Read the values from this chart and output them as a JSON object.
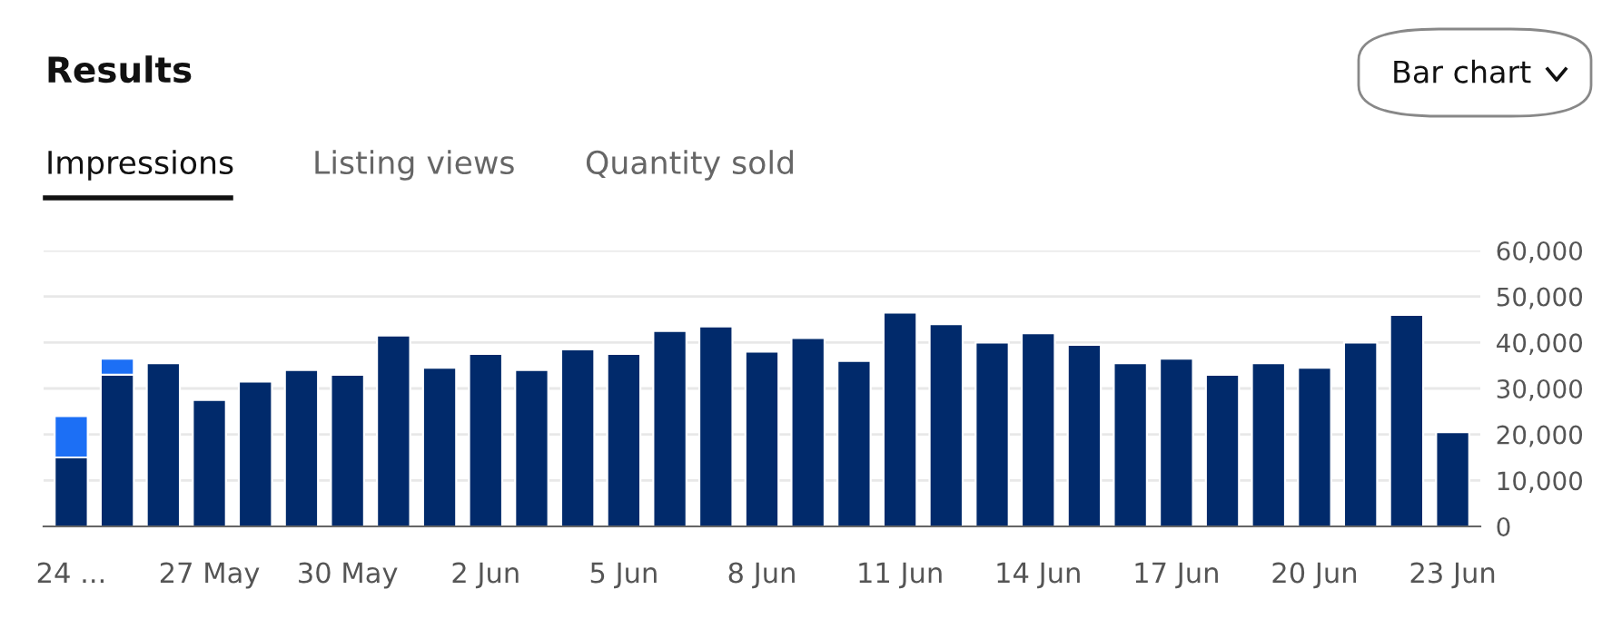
{
  "chart_data": {
    "type": "bar",
    "title": "Results",
    "annotations": [
      "Impressions",
      "Listing views",
      "Quantity sold",
      "Bar chart"
    ],
    "categories": [
      "24 ...",
      null,
      null,
      "27 May",
      null,
      null,
      "30 May",
      null,
      null,
      "2 Jun",
      null,
      null,
      "5 Jun",
      null,
      null,
      "8 Jun",
      null,
      null,
      "11 Jun",
      null,
      null,
      "14 Jun",
      null,
      null,
      "17 Jun",
      null,
      null,
      "20 Jun",
      null,
      null,
      "23 Jun"
    ],
    "stacked": true,
    "series": [
      {
        "color": "#012a6b",
        "values": [
          15000,
          33000,
          35500,
          27500,
          31500,
          34000,
          33000,
          41500,
          34500,
          37500,
          34000,
          38500,
          37500,
          42500,
          43500,
          38000,
          41000,
          36000,
          46500,
          44000,
          40000,
          42000,
          39500,
          35500,
          36500,
          33000,
          35500,
          34500,
          40000,
          46000,
          20500
        ]
      },
      {
        "color": "#1c6ff5",
        "values": [
          9000,
          3500,
          null,
          null,
          null,
          null,
          null,
          null,
          null,
          null,
          null,
          null,
          null,
          null,
          null,
          null,
          null,
          null,
          null,
          null,
          null,
          null,
          null,
          null,
          null,
          null,
          null,
          null,
          null,
          null,
          null
        ]
      }
    ],
    "ylim": [
      0,
      60000
    ],
    "yticks": [
      0,
      {
        "value": 10000,
        "label": "10,000"
      },
      {
        "value": 20000,
        "label": "20,000"
      },
      {
        "value": 30000,
        "label": "30,000"
      },
      {
        "value": 40000,
        "label": "40,000"
      },
      {
        "value": 50000,
        "label": "50,000"
      },
      {
        "value": 60000,
        "label": "60,000"
      }
    ],
    "grid": "y"
  }
}
